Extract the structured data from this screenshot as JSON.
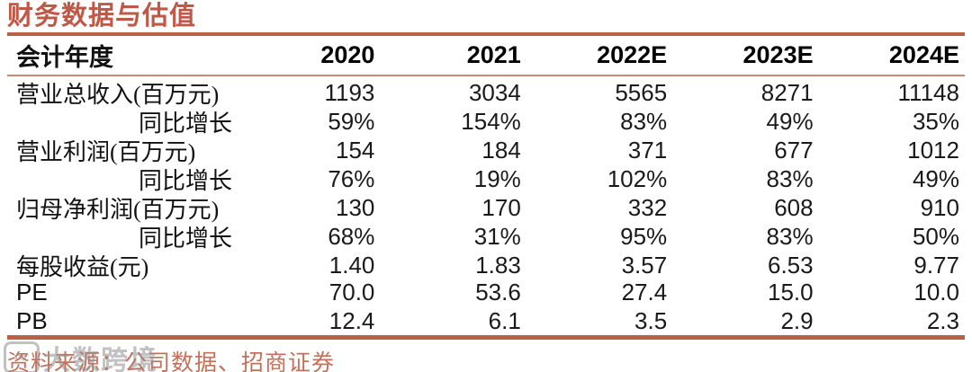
{
  "title": "财务数据与估值",
  "table": {
    "header": {
      "label": "会计年度",
      "years": [
        "2020",
        "2021",
        "2022E",
        "2023E",
        "2024E"
      ]
    },
    "rows": [
      {
        "label": "营业总收入(百万元)",
        "values": [
          "1193",
          "3034",
          "5565",
          "8271",
          "11148"
        ]
      },
      {
        "label": "同比增长",
        "values": [
          "59%",
          "154%",
          "83%",
          "49%",
          "35%"
        ]
      },
      {
        "label": "营业利润(百万元)",
        "values": [
          "154",
          "184",
          "371",
          "677",
          "1012"
        ]
      },
      {
        "label": "同比增长",
        "values": [
          "76%",
          "19%",
          "102%",
          "83%",
          "49%"
        ]
      },
      {
        "label": "归母净利润(百万元)",
        "values": [
          "130",
          "170",
          "332",
          "608",
          "910"
        ]
      },
      {
        "label": "同比增长",
        "values": [
          "68%",
          "31%",
          "95%",
          "83%",
          "50%"
        ]
      },
      {
        "label": "每股收益(元)",
        "values": [
          "1.40",
          "1.83",
          "3.57",
          "6.53",
          "9.77"
        ]
      },
      {
        "label": "PE",
        "values": [
          "70.0",
          "53.6",
          "27.4",
          "15.0",
          "10.0"
        ]
      },
      {
        "label": "PB",
        "values": [
          "12.4",
          "6.1",
          "3.5",
          "2.9",
          "2.3"
        ]
      }
    ]
  },
  "footer": {
    "source": "资料来源：公司数据、招商证券"
  },
  "watermark": {
    "logo": "∞",
    "text": "大数跨境"
  },
  "colors": {
    "accent": "#bf5846",
    "line_thick": "#bc5f48",
    "line_thin": "#c98a74",
    "footer_color": "#c4705a"
  }
}
